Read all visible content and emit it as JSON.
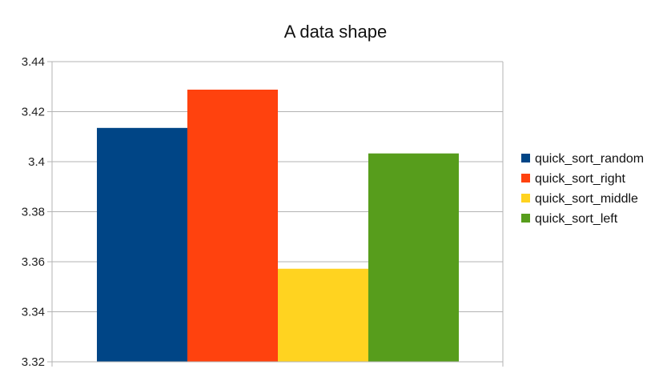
{
  "chart_data": {
    "type": "bar",
    "title": "A data shape",
    "xlabel": "",
    "ylabel": "",
    "ylim": [
      3.32,
      3.44
    ],
    "yticks": [
      "3.32",
      "3.34",
      "3.36",
      "3.38",
      "3.4",
      "3.42",
      "3.44"
    ],
    "grid": true,
    "legend_position": "right",
    "series": [
      {
        "name": "quick_sort_random",
        "values": [
          3.4135
        ],
        "color": "#004586"
      },
      {
        "name": "quick_sort_right",
        "values": [
          3.4288
        ],
        "color": "#ff420e"
      },
      {
        "name": "quick_sort_middle",
        "values": [
          3.3572
        ],
        "color": "#ffd320"
      },
      {
        "name": "quick_sort_left",
        "values": [
          3.4033
        ],
        "color": "#579d1c"
      }
    ]
  }
}
